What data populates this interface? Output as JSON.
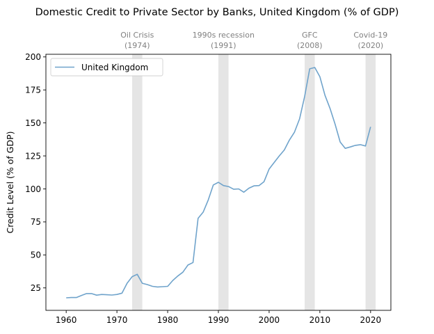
{
  "chart_data": {
    "type": "line",
    "title": "Domestic Credit to Private Sector by Banks, United Kingdom (% of GDP)",
    "xlabel": "",
    "ylabel": "Credit Level (% of GDP)",
    "xlim": [
      1956,
      2024
    ],
    "ylim": [
      8,
      202
    ],
    "xticks": [
      1960,
      1970,
      1980,
      1990,
      2000,
      2010,
      2020
    ],
    "yticks": [
      25,
      50,
      75,
      100,
      125,
      150,
      175,
      200
    ],
    "grid": false,
    "legend": "top-left",
    "colors": {
      "line": "#6fa3cb",
      "shade": "#d3d3d3",
      "annotation": "#808080"
    },
    "series": [
      {
        "name": "United Kingdom",
        "x": [
          1960,
          1961,
          1962,
          1963,
          1964,
          1965,
          1966,
          1967,
          1968,
          1969,
          1970,
          1971,
          1972,
          1973,
          1974,
          1975,
          1976,
          1977,
          1978,
          1979,
          1980,
          1981,
          1982,
          1983,
          1984,
          1985,
          1986,
          1987,
          1988,
          1989,
          1990,
          1991,
          1992,
          1993,
          1994,
          1995,
          1996,
          1997,
          1998,
          1999,
          2000,
          2001,
          2002,
          2003,
          2004,
          2005,
          2006,
          2007,
          2008,
          2009,
          2010,
          2011,
          2012,
          2013,
          2014,
          2015,
          2016,
          2017,
          2018,
          2019,
          2020
        ],
        "values": [
          17.5,
          17.7,
          17.7,
          19.3,
          20.7,
          20.7,
          19.5,
          20.0,
          19.8,
          19.6,
          20.0,
          21.0,
          28.5,
          33.5,
          35.3,
          28.5,
          27.5,
          26.2,
          25.7,
          25.9,
          26.2,
          30.6,
          34.0,
          36.9,
          42.3,
          44.2,
          77.7,
          82.4,
          91.6,
          103.0,
          105.0,
          102.5,
          101.8,
          99.8,
          100.0,
          97.5,
          100.5,
          102.3,
          102.5,
          105.5,
          115.0,
          120.0,
          125.0,
          129.5,
          137.0,
          143.0,
          153.0,
          170.0,
          191.0,
          192.0,
          185.0,
          171.0,
          161.0,
          149.0,
          135.5,
          130.7,
          131.8,
          133.0,
          133.5,
          132.5,
          147.0
        ]
      }
    ],
    "annotations": [
      {
        "label": "Oil Crisis",
        "year": "(1974)",
        "x0": 1973,
        "x1": 1975
      },
      {
        "label": "1990s recession",
        "year": "(1991)",
        "x0": 1990,
        "x1": 1992
      },
      {
        "label": "GFC",
        "year": "(2008)",
        "x0": 2007,
        "x1": 2009
      },
      {
        "label": "Covid-19",
        "year": "(2020)",
        "x0": 2019,
        "x1": 2021
      }
    ]
  }
}
